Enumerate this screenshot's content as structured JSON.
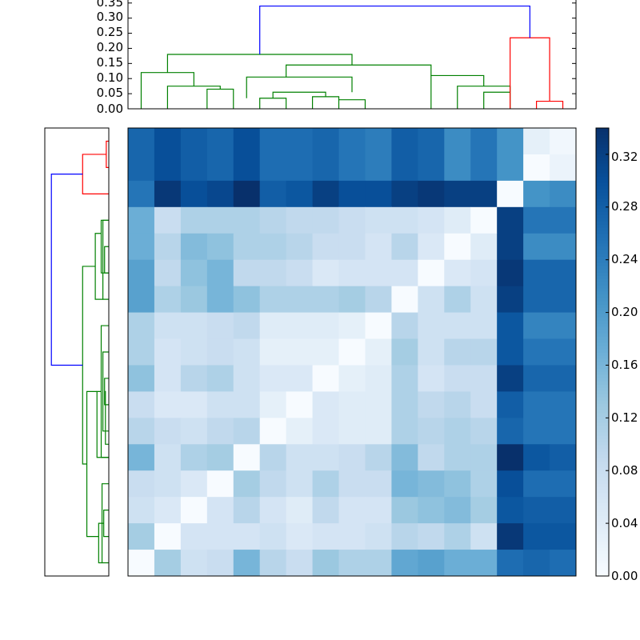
{
  "chart_data": {
    "type": "heatmap",
    "title": "",
    "colormap": "Blues",
    "colors": {
      "cluster_a": "#008000",
      "cluster_b": "#ff0000",
      "root_link": "#0000ff",
      "axes": "#000000"
    },
    "matrix": [
      [
        0.27,
        0.3,
        0.28,
        0.27,
        0.3,
        0.26,
        0.26,
        0.27,
        0.25,
        0.24,
        0.28,
        0.27,
        0.22,
        0.25,
        0.21,
        0.03,
        0.01
      ],
      [
        0.27,
        0.3,
        0.28,
        0.27,
        0.3,
        0.26,
        0.26,
        0.27,
        0.25,
        0.24,
        0.28,
        0.27,
        0.22,
        0.25,
        0.21,
        0.0,
        0.02
      ],
      [
        0.25,
        0.33,
        0.3,
        0.31,
        0.34,
        0.28,
        0.29,
        0.32,
        0.3,
        0.3,
        0.32,
        0.33,
        0.32,
        0.32,
        0.0,
        0.21,
        0.22
      ],
      [
        0.17,
        0.08,
        0.11,
        0.11,
        0.11,
        0.1,
        0.09,
        0.09,
        0.08,
        0.07,
        0.07,
        0.06,
        0.04,
        0.0,
        0.32,
        0.25,
        0.25
      ],
      [
        0.17,
        0.1,
        0.15,
        0.14,
        0.11,
        0.11,
        0.1,
        0.08,
        0.08,
        0.06,
        0.1,
        0.05,
        0.0,
        0.04,
        0.32,
        0.22,
        0.22
      ],
      [
        0.19,
        0.09,
        0.14,
        0.16,
        0.09,
        0.09,
        0.08,
        0.05,
        0.06,
        0.06,
        0.06,
        0.0,
        0.05,
        0.06,
        0.33,
        0.27,
        0.27
      ],
      [
        0.19,
        0.11,
        0.13,
        0.16,
        0.14,
        0.11,
        0.11,
        0.11,
        0.12,
        0.1,
        0.0,
        0.07,
        0.11,
        0.07,
        0.32,
        0.27,
        0.27
      ],
      [
        0.11,
        0.07,
        0.07,
        0.08,
        0.09,
        0.04,
        0.04,
        0.04,
        0.03,
        0.0,
        0.1,
        0.07,
        0.07,
        0.07,
        0.29,
        0.23,
        0.23
      ],
      [
        0.11,
        0.06,
        0.07,
        0.08,
        0.07,
        0.03,
        0.03,
        0.03,
        0.0,
        0.03,
        0.12,
        0.07,
        0.1,
        0.1,
        0.29,
        0.25,
        0.25
      ],
      [
        0.14,
        0.06,
        0.1,
        0.11,
        0.07,
        0.05,
        0.05,
        0.0,
        0.03,
        0.04,
        0.11,
        0.06,
        0.08,
        0.08,
        0.32,
        0.27,
        0.27
      ],
      [
        0.08,
        0.05,
        0.05,
        0.07,
        0.07,
        0.03,
        0.0,
        0.05,
        0.04,
        0.04,
        0.11,
        0.09,
        0.1,
        0.08,
        0.28,
        0.25,
        0.25
      ],
      [
        0.1,
        0.08,
        0.07,
        0.09,
        0.1,
        0.0,
        0.03,
        0.05,
        0.04,
        0.04,
        0.11,
        0.1,
        0.11,
        0.1,
        0.27,
        0.25,
        0.25
      ],
      [
        0.16,
        0.07,
        0.11,
        0.12,
        0.0,
        0.1,
        0.07,
        0.07,
        0.08,
        0.1,
        0.15,
        0.09,
        0.11,
        0.11,
        0.34,
        0.29,
        0.28
      ],
      [
        0.08,
        0.07,
        0.05,
        0.0,
        0.12,
        0.09,
        0.07,
        0.11,
        0.08,
        0.08,
        0.16,
        0.15,
        0.14,
        0.11,
        0.3,
        0.26,
        0.26
      ],
      [
        0.07,
        0.05,
        0.0,
        0.06,
        0.1,
        0.06,
        0.04,
        0.09,
        0.06,
        0.06,
        0.13,
        0.14,
        0.15,
        0.12,
        0.29,
        0.28,
        0.28
      ],
      [
        0.12,
        0.0,
        0.06,
        0.06,
        0.06,
        0.07,
        0.05,
        0.06,
        0.06,
        0.07,
        0.1,
        0.09,
        0.11,
        0.07,
        0.33,
        0.29,
        0.29
      ],
      [
        0.0,
        0.12,
        0.07,
        0.08,
        0.16,
        0.1,
        0.08,
        0.13,
        0.11,
        0.11,
        0.18,
        0.19,
        0.17,
        0.17,
        0.26,
        0.27,
        0.26
      ]
    ],
    "colorbar": {
      "vmin": 0.0,
      "vmax": 0.34,
      "ticks": [
        "0.00",
        "0.04",
        "0.08",
        "0.12",
        "0.16",
        "0.20",
        "0.24",
        "0.28",
        "0.32"
      ]
    },
    "top_dendrogram": {
      "ylim": [
        0,
        0.36
      ],
      "yticks": [
        "0.00",
        "0.05",
        "0.10",
        "0.15",
        "0.20",
        "0.25",
        "0.30",
        "0.35"
      ],
      "links": [
        {
          "a": 0.5,
          "b": 2.5,
          "h": 0.12,
          "ha": 0,
          "hb": 0.075,
          "c": "cluster_a"
        },
        {
          "a": 1.5,
          "b": 3.5,
          "h": 0.075,
          "ha": 0,
          "hb": 0.065,
          "c": "cluster_a"
        },
        {
          "a": 3,
          "b": 4,
          "h": 0.065,
          "ha": 0,
          "hb": 0,
          "c": "cluster_a"
        },
        {
          "a": 4.5,
          "b": 8.5,
          "h": 0.105,
          "ha": 0.035,
          "hb": 0.055,
          "c": "cluster_a"
        },
        {
          "a": 5,
          "b": 6,
          "h": 0.035,
          "ha": 0,
          "hb": 0,
          "c": "cluster_a"
        },
        {
          "a": 5.5,
          "b": 7.5,
          "h": 0.055,
          "ha": 0.035,
          "hb": 0.04,
          "c": "cluster_a"
        },
        {
          "a": 7,
          "b": 8,
          "h": 0.04,
          "ha": 0,
          "hb": 0.03,
          "c": "cluster_a"
        },
        {
          "a": 8,
          "b": 9,
          "h": 0.03,
          "ha": 0,
          "hb": 0,
          "c": "cluster_a"
        },
        {
          "a": 11.5,
          "b": 13.5,
          "h": 0.11,
          "ha": 0,
          "hb": 0.075,
          "c": "cluster_a"
        },
        {
          "a": 12.5,
          "b": 14.5,
          "h": 0.075,
          "ha": 0,
          "hb": 0.055,
          "c": "cluster_a"
        },
        {
          "a": 13.5,
          "b": 14.5,
          "h": 0.055,
          "ha": 0,
          "hb": 0,
          "c": "cluster_a"
        },
        {
          "a": 6,
          "b": 11.5,
          "h": 0.145,
          "ha": 0.105,
          "hb": 0.11,
          "c": "cluster_a"
        },
        {
          "a": 1.5,
          "b": 8.5,
          "h": 0.18,
          "ha": 0.12,
          "hb": 0.145,
          "c": "cluster_a"
        },
        {
          "a": 15.5,
          "b": 16.5,
          "h": 0.025,
          "ha": 0,
          "hb": 0,
          "c": "cluster_b"
        },
        {
          "a": 14.5,
          "b": 16,
          "h": 0.235,
          "ha": 0,
          "hb": 0.025,
          "c": "cluster_b"
        },
        {
          "a": 5,
          "b": 15.25,
          "h": 0.34,
          "ha": 0.18,
          "hb": 0.235,
          "c": "root_link"
        }
      ]
    },
    "left_dendrogram": {
      "ylim": [
        0,
        0.36
      ],
      "links": [
        {
          "a": 0.5,
          "b": 1.5,
          "h": 0.015,
          "ha": 0,
          "hb": 0,
          "c": "cluster_b"
        },
        {
          "a": 1,
          "b": 2.5,
          "h": 0.155,
          "ha": 0.015,
          "hb": 0,
          "c": "cluster_b"
        },
        {
          "a": 3.5,
          "b": 6.5,
          "h": 0.035,
          "ha": 0,
          "hb": 0,
          "c": "cluster_a"
        },
        {
          "a": 3.5,
          "b": 5.5,
          "h": 0.045,
          "ha": 0,
          "hb": 0,
          "c": "cluster_a"
        },
        {
          "a": 4.5,
          "b": 5.5,
          "h": 0.025,
          "ha": 0,
          "hb": 0,
          "c": "cluster_a"
        },
        {
          "a": 4,
          "b": 6.5,
          "h": 0.08,
          "ha": 0.045,
          "hb": 0.035,
          "c": "cluster_a"
        },
        {
          "a": 7.5,
          "b": 12.5,
          "h": 0.045,
          "ha": 0,
          "hb": 0,
          "c": "cluster_a"
        },
        {
          "a": 8.5,
          "b": 11.5,
          "h": 0.035,
          "ha": 0,
          "hb": 0,
          "c": "cluster_a"
        },
        {
          "a": 9.5,
          "b": 10.5,
          "h": 0.025,
          "ha": 0,
          "hb": 0,
          "c": "cluster_a"
        },
        {
          "a": 10,
          "b": 12,
          "h": 0.02,
          "ha": 0.025,
          "hb": 0,
          "c": "cluster_a"
        },
        {
          "a": 10,
          "b": 12.5,
          "h": 0.07,
          "ha": 0.045,
          "hb": 0,
          "c": "cluster_a"
        },
        {
          "a": 13.5,
          "b": 16.5,
          "h": 0.04,
          "ha": 0,
          "hb": 0,
          "c": "cluster_a"
        },
        {
          "a": 14.5,
          "b": 15.5,
          "h": 0.03,
          "ha": 0,
          "hb": 0,
          "c": "cluster_a"
        },
        {
          "a": 15,
          "b": 16.5,
          "h": 0.06,
          "ha": 0.03,
          "hb": 0.04,
          "c": "cluster_a"
        },
        {
          "a": 10,
          "b": 15.5,
          "h": 0.13,
          "ha": 0.07,
          "hb": 0.06,
          "c": "cluster_a"
        },
        {
          "a": 5.25,
          "b": 12.75,
          "h": 0.155,
          "ha": 0.08,
          "hb": 0.13,
          "c": "cluster_a"
        },
        {
          "a": 1.75,
          "b": 9,
          "h": 0.34,
          "ha": 0.155,
          "hb": 0.155,
          "c": "root_link"
        }
      ]
    }
  }
}
